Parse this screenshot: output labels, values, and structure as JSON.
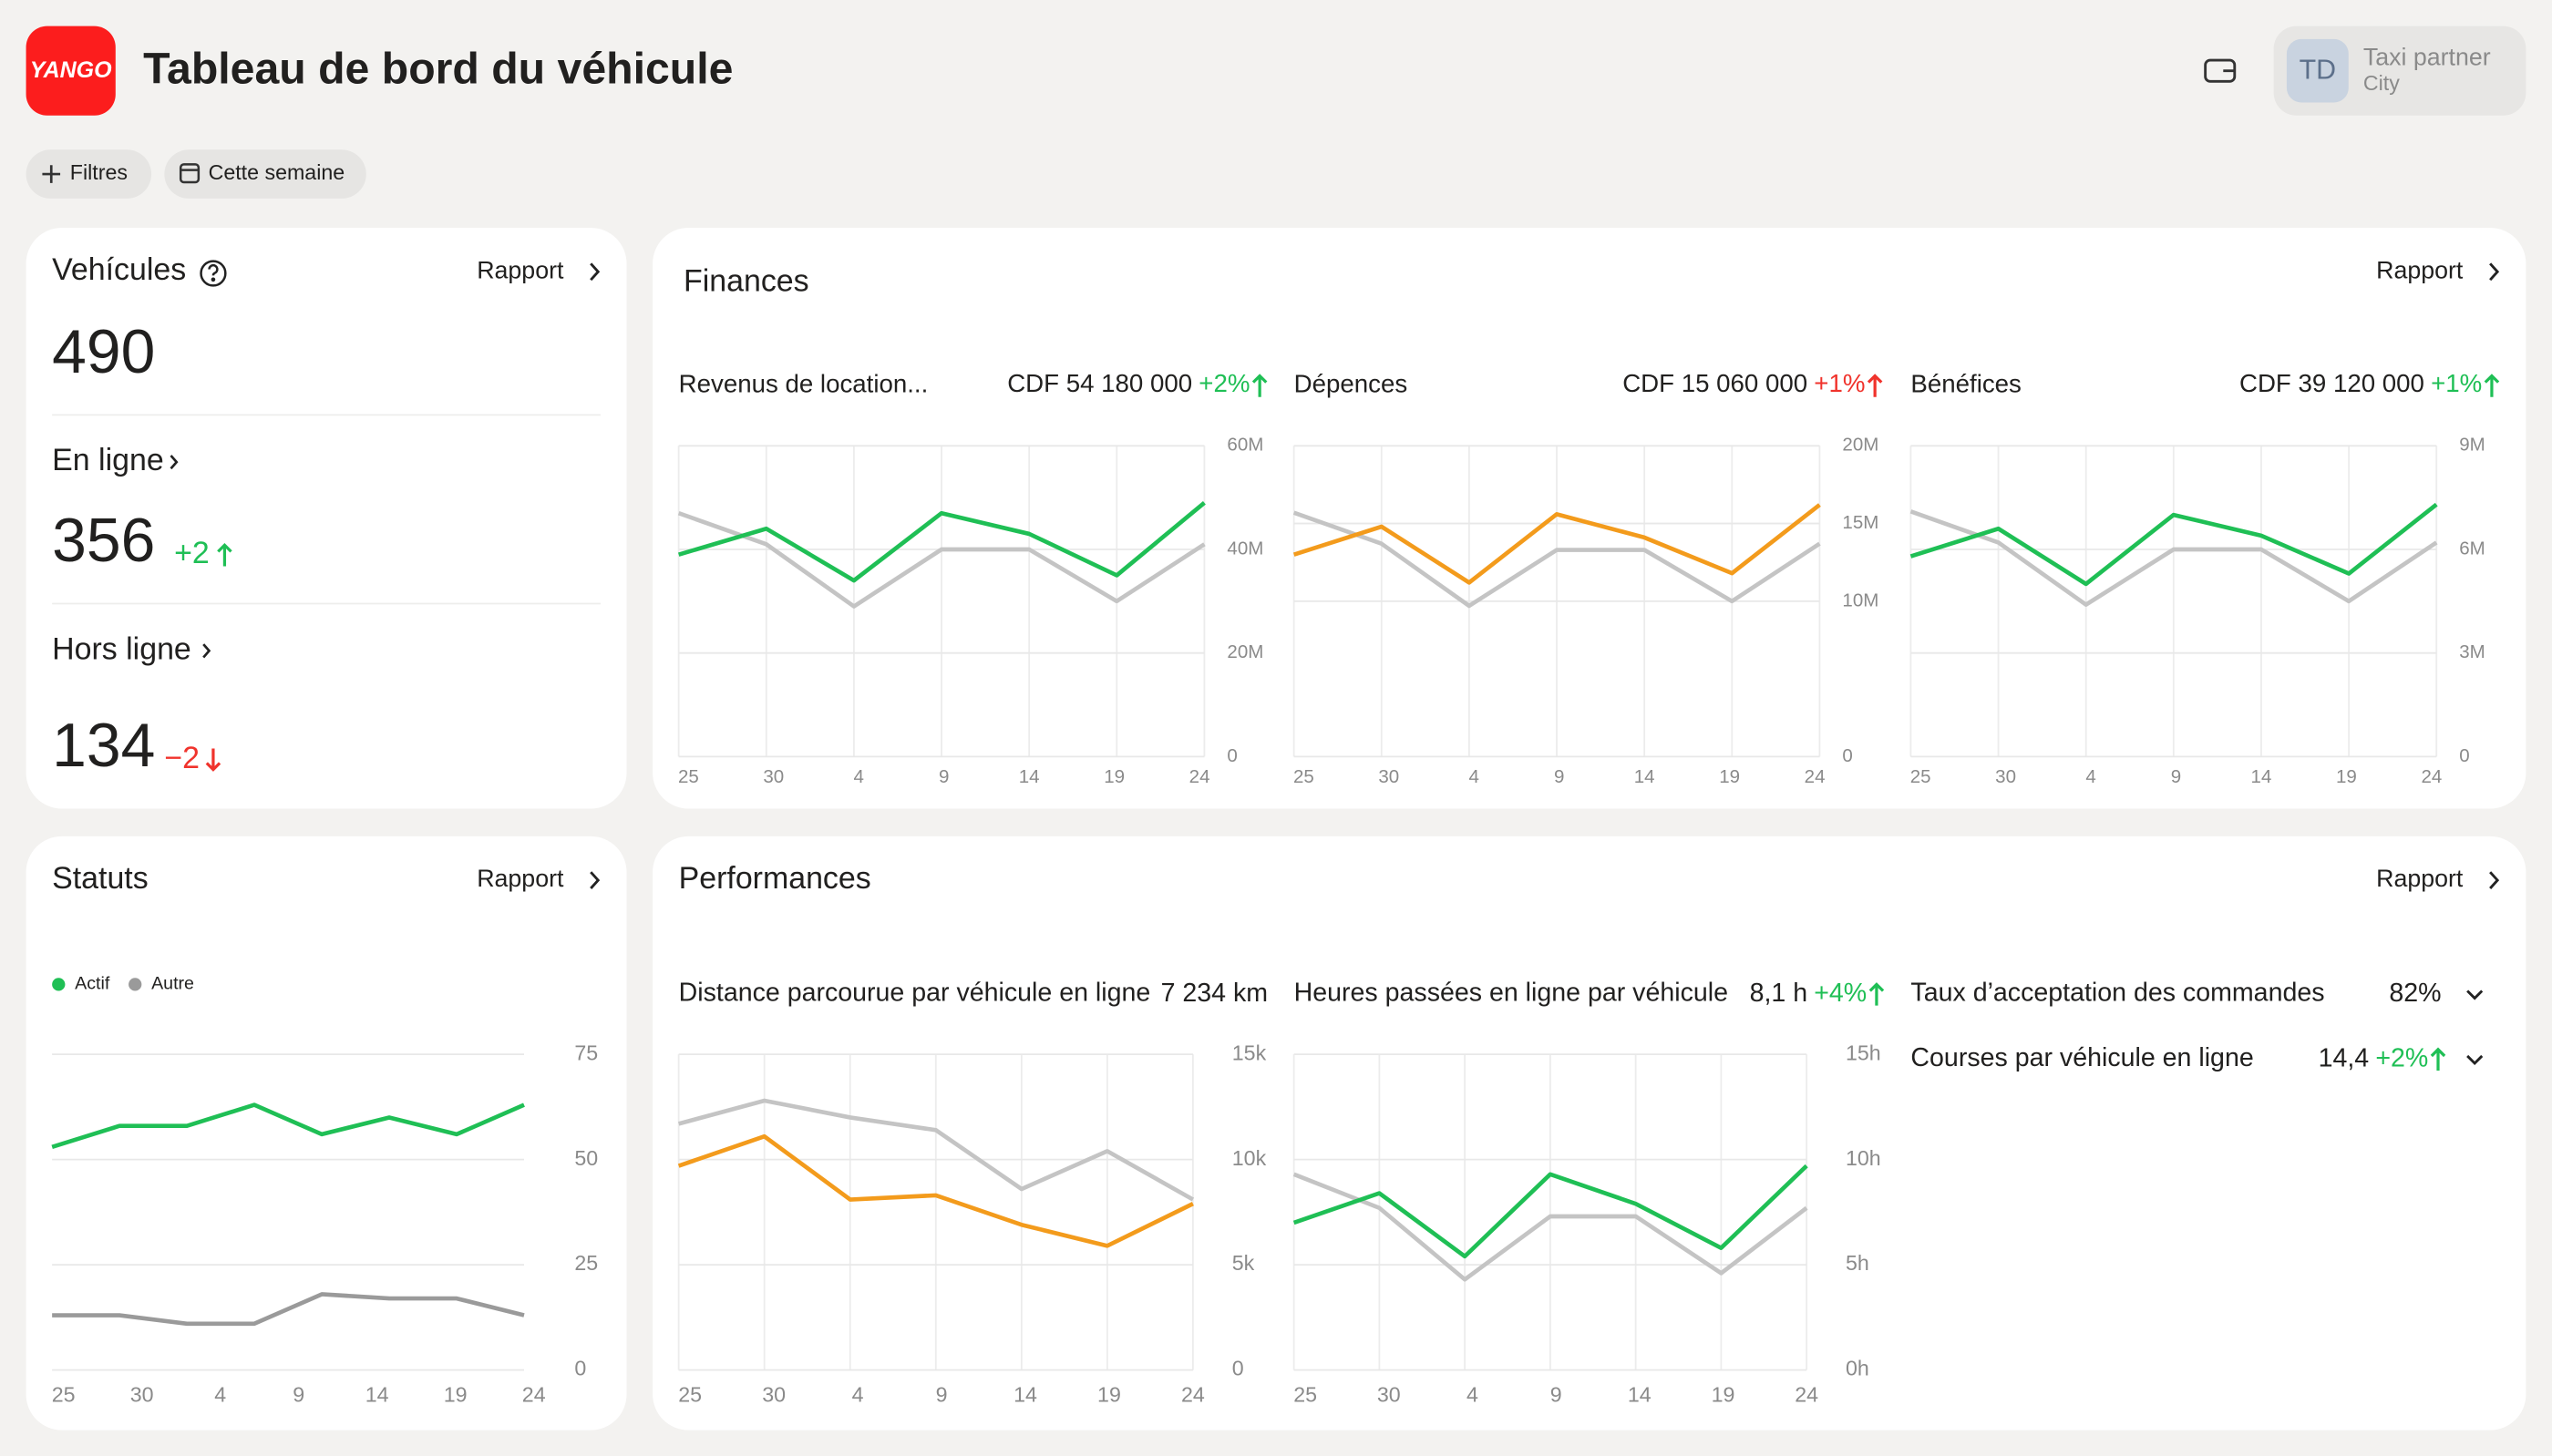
{
  "header": {
    "logo": "YANGO",
    "title": "Tableau de bord du véhicule",
    "user": {
      "initials": "TD",
      "name": "Taxi partner",
      "city": "City"
    }
  },
  "filters": {
    "add": "Filtres",
    "period": "Cette semaine"
  },
  "vehicles": {
    "title": "Vehícules",
    "report": "Rapport",
    "total": 490,
    "online": {
      "label": "En ligne",
      "value": 356,
      "delta": "+2",
      "delta_color": "#1fbf55"
    },
    "offline": {
      "label": "Hors ligne",
      "value": 134,
      "delta": "−2",
      "delta_color": "#f0332c"
    }
  },
  "finances": {
    "title": "Finances",
    "report": "Rapport",
    "charts": [
      {
        "label": "Revenus de location...",
        "value": "CDF 54 180 000",
        "delta": "+2%",
        "delta_color": "#1fbf55",
        "chart": {
          "type": "line",
          "xticks": [
            "25",
            "30",
            "4",
            "9",
            "14",
            "19",
            "24"
          ],
          "ylim": [
            0,
            60000000
          ],
          "yticks": [
            0,
            {
              "value": 20000000,
              "label": "20M"
            },
            {
              "value": 40000000,
              "label": "40M"
            },
            {
              "value": 60000000,
              "label": "60M"
            }
          ],
          "series": [
            {
              "color": "#1fbf55",
              "values": [
                39000000,
                44000000,
                34000000,
                47000000,
                43000000,
                35000000,
                49000000
              ]
            },
            {
              "color": "#c4c4c4",
              "values": [
                47000000,
                41000000,
                29000000,
                40000000,
                40000000,
                30000000,
                41000000
              ]
            }
          ]
        }
      },
      {
        "label": "Dépences",
        "value": "CDF 15 060 000",
        "delta": "+1%",
        "delta_color": "#f0332c",
        "chart": {
          "type": "line",
          "xticks": [
            "25",
            "30",
            "4",
            "9",
            "14",
            "19",
            "24"
          ],
          "ylim": [
            0,
            20000000
          ],
          "yticks": [
            0,
            {
              "value": 10000000,
              "label": "10M"
            },
            {
              "value": 15000000,
              "label": "15M"
            },
            {
              "value": 20000000,
              "label": "20M"
            }
          ],
          "series": [
            {
              "color": "#f39b1c",
              "values": [
                13000000,
                14800000,
                11200000,
                15600000,
                14100000,
                11800000,
                16200000
              ]
            },
            {
              "color": "#c4c4c4",
              "values": [
                15700000,
                13700000,
                9700000,
                13300000,
                13300000,
                10000000,
                13700000
              ]
            }
          ]
        }
      },
      {
        "label": "Bénéfices",
        "value": "CDF 39 120 000",
        "delta": "+1%",
        "delta_color": "#1fbf55",
        "chart": {
          "type": "line",
          "xticks": [
            "25",
            "30",
            "4",
            "9",
            "14",
            "19",
            "24"
          ],
          "ylim": [
            0,
            9000000
          ],
          "yticks": [
            0,
            {
              "value": 3000000,
              "label": "3M"
            },
            {
              "value": 6000000,
              "label": "6M"
            },
            {
              "value": 9000000,
              "label": "9M"
            }
          ],
          "series": [
            {
              "color": "#1fbf55",
              "values": [
                5800000,
                6600000,
                5000000,
                7000000,
                6400000,
                5300000,
                7300000
              ]
            },
            {
              "color": "#c4c4c4",
              "values": [
                7100000,
                6200000,
                4400000,
                6000000,
                6000000,
                4500000,
                6200000
              ]
            }
          ]
        }
      }
    ]
  },
  "statuts": {
    "title": "Statuts",
    "report": "Rapport",
    "chart": {
      "type": "line",
      "xticks": [
        "25",
        "30",
        "4",
        "9",
        "14",
        "19",
        "24"
      ],
      "ylim": [
        0,
        75
      ],
      "yticks": [
        0,
        25,
        50,
        75
      ],
      "series": [
        {
          "name": "Actif",
          "color": "#1fbf55",
          "values": [
            53,
            58,
            58,
            63,
            56,
            60,
            56,
            63
          ]
        },
        {
          "name": "Autre",
          "color": "#9a9a9a",
          "values": [
            13,
            13,
            11,
            11,
            18,
            17,
            17,
            13
          ]
        }
      ]
    }
  },
  "performances": {
    "title": "Performances",
    "report": "Rapport",
    "charts": [
      {
        "label": "Distance parcourue par véhicule en ligne",
        "value": "7 234 km",
        "chart": {
          "type": "line",
          "xticks": [
            "25",
            "30",
            "4",
            "9",
            "14",
            "19",
            "24"
          ],
          "ylim": [
            0,
            15000
          ],
          "yticks": [
            0,
            {
              "value": 5000,
              "label": "5k"
            },
            {
              "value": 10000,
              "label": "10k"
            },
            {
              "value": 15000,
              "label": "15k"
            }
          ],
          "series": [
            {
              "color": "#f39b1c",
              "values": [
                9700,
                11100,
                8100,
                8300,
                6900,
                5900,
                7900
              ]
            },
            {
              "color": "#c4c4c4",
              "values": [
                11700,
                12800,
                12000,
                11400,
                8600,
                10400,
                8100
              ]
            }
          ]
        }
      },
      {
        "label": "Heures passées en ligne par véhicule",
        "value": "8,1 h",
        "delta": "+4%",
        "delta_color": "#1fbf55",
        "chart": {
          "type": "line",
          "xticks": [
            "25",
            "30",
            "4",
            "9",
            "14",
            "19",
            "24"
          ],
          "ylim": [
            0,
            15
          ],
          "yticks": [
            {
              "value": 0,
              "label": "0h"
            },
            {
              "value": 5,
              "label": "5h"
            },
            {
              "value": 10,
              "label": "10h"
            },
            {
              "value": 15,
              "label": "15h"
            }
          ],
          "series": [
            {
              "color": "#1fbf55",
              "values": [
                7.0,
                8.4,
                5.4,
                9.3,
                7.9,
                5.8,
                9.7
              ]
            },
            {
              "color": "#c4c4c4",
              "values": [
                9.3,
                7.7,
                4.3,
                7.3,
                7.3,
                4.6,
                7.7
              ]
            }
          ]
        }
      }
    ],
    "items": [
      {
        "label": "Taux d’acceptation des commandes",
        "value": "82%"
      },
      {
        "label": "Courses par véhicule en ligne",
        "value": "14,4",
        "delta": "+2%",
        "delta_color": "#1fbf55"
      }
    ]
  }
}
